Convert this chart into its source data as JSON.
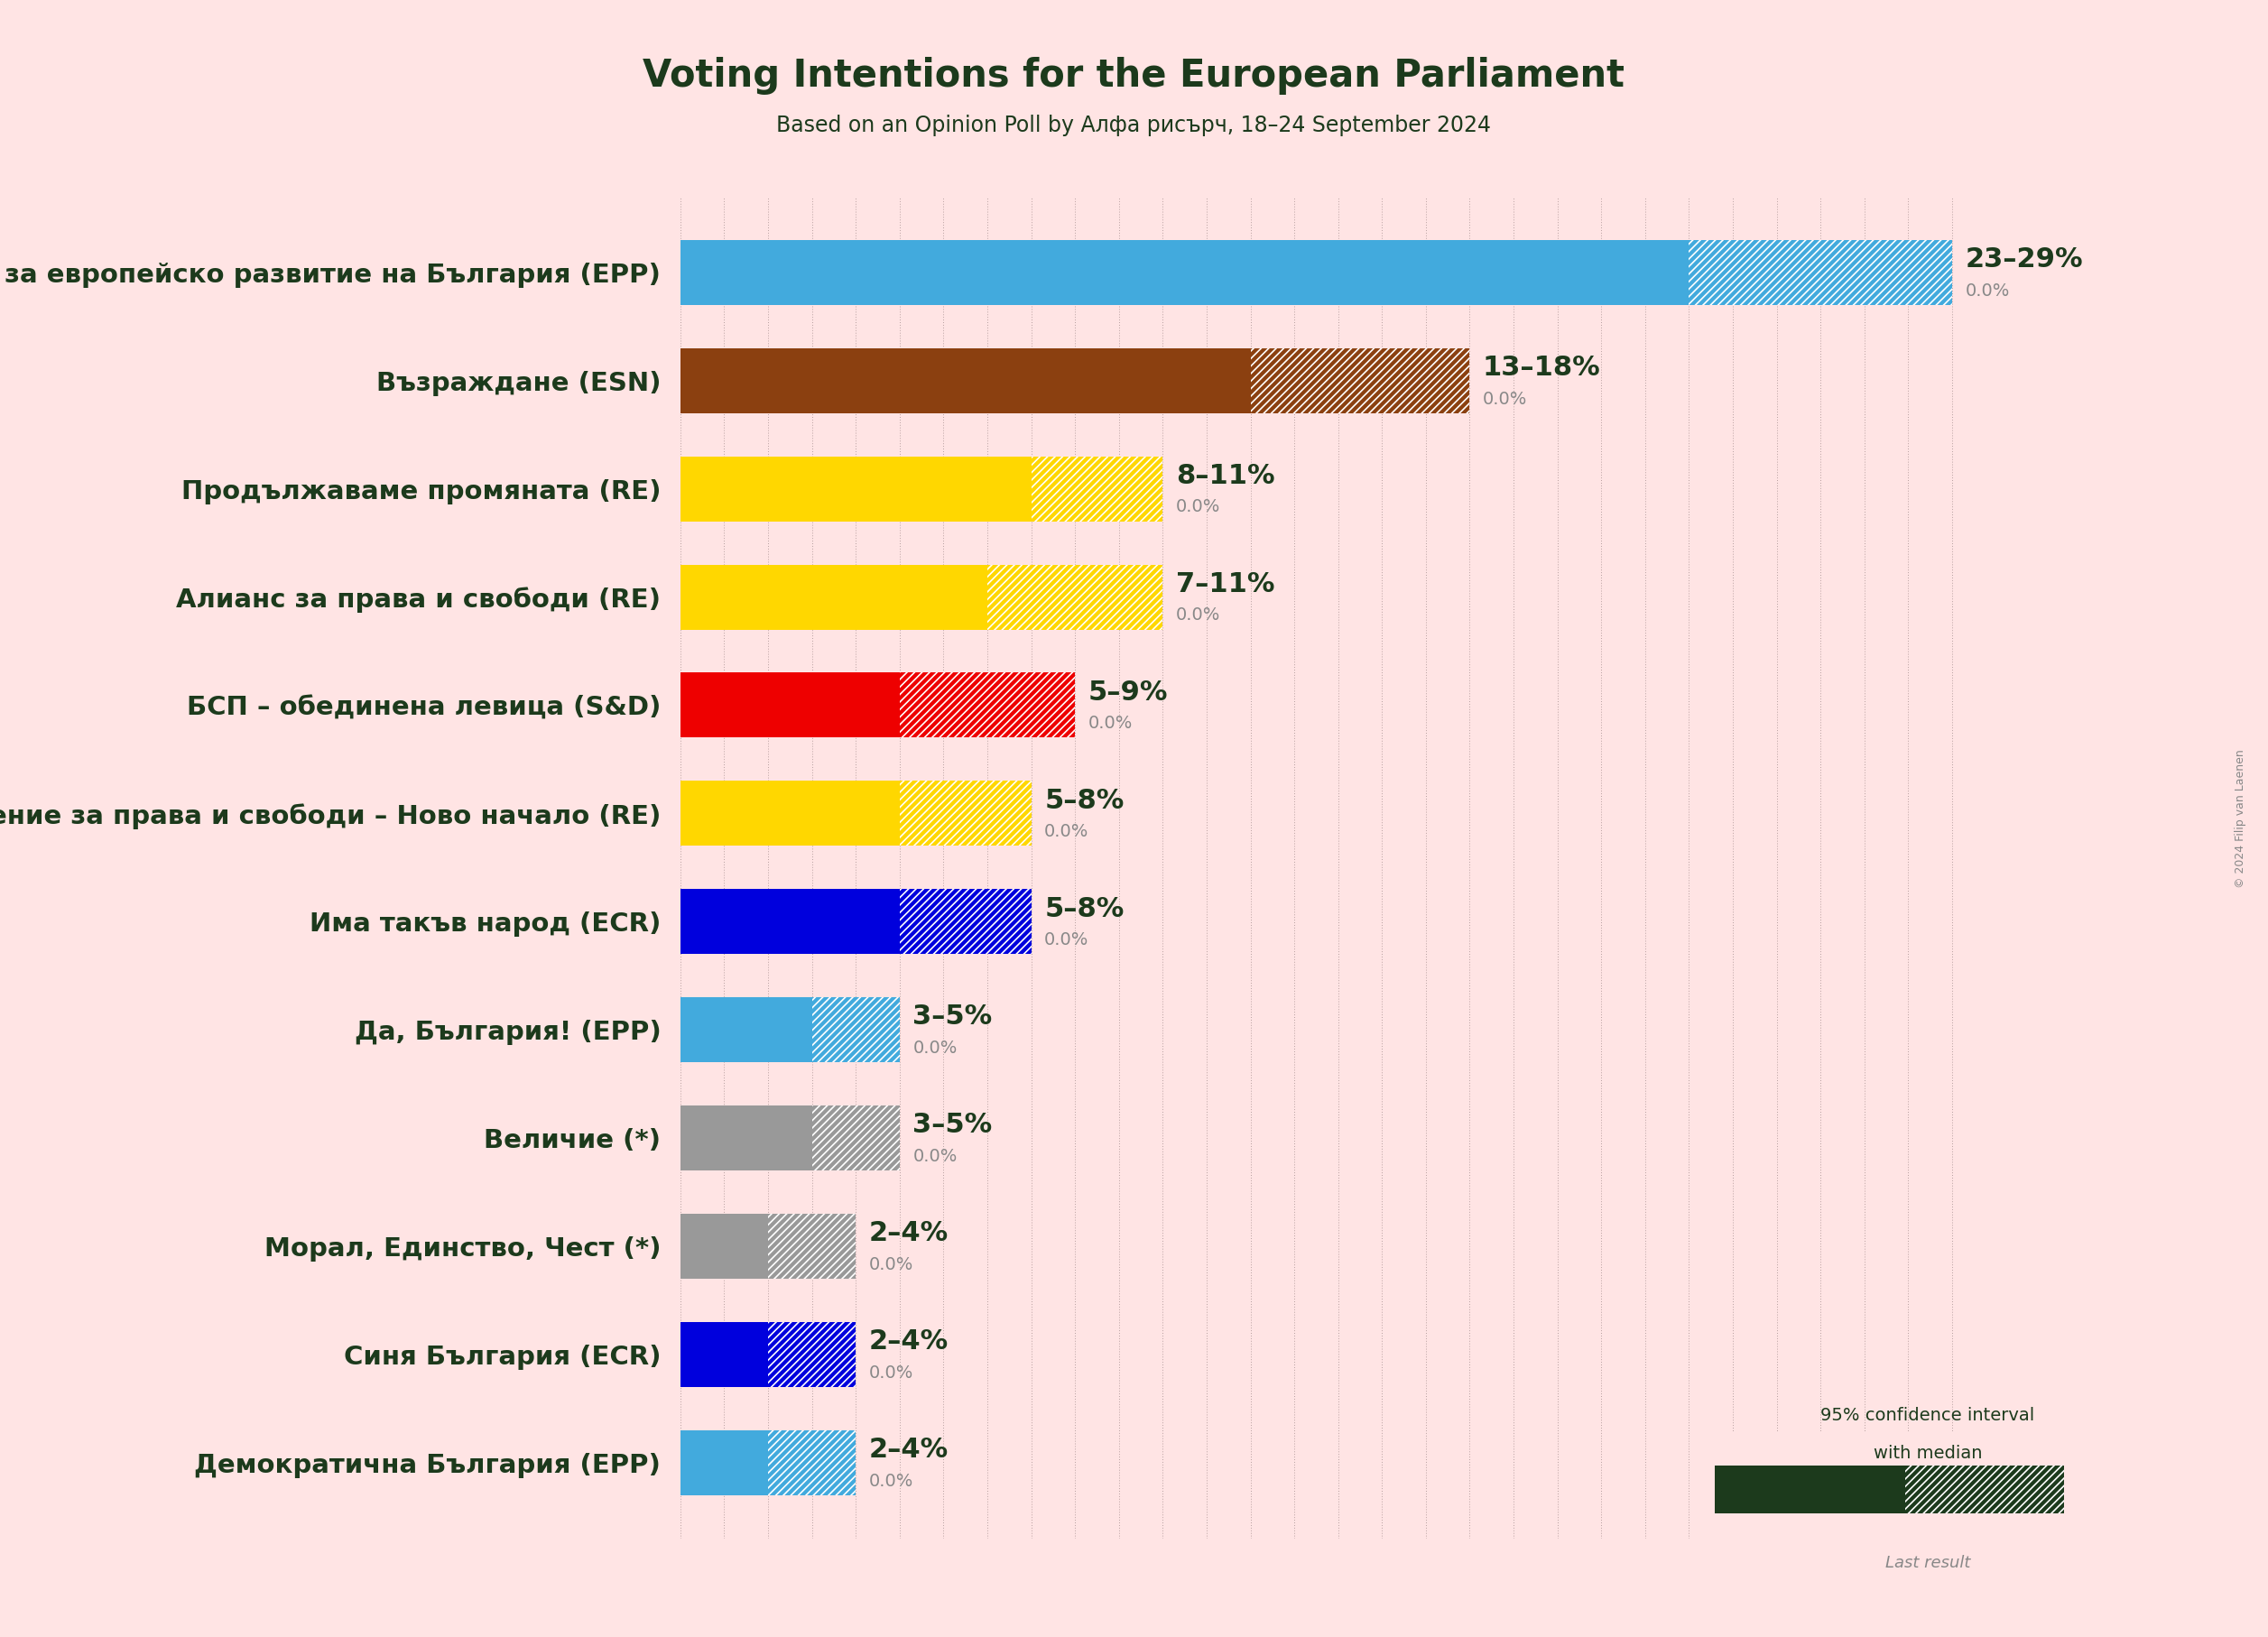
{
  "title": "Voting Intentions for the European Parliament",
  "subtitle": "Based on an Opinion Poll by Алфа рисърч, 18–24 September 2024",
  "background_color": "#FFE4E4",
  "parties": [
    {
      "name": "Граждани за европейско развитие на България (EPP)",
      "low": 23,
      "high": 29,
      "color": "#42AADD",
      "label": "23–29%",
      "last": "0.0%"
    },
    {
      "name": "Възраждане (ESN)",
      "low": 13,
      "high": 18,
      "color": "#8B4010",
      "label": "13–18%",
      "last": "0.0%"
    },
    {
      "name": "Продължаваме промяната (RE)",
      "low": 8,
      "high": 11,
      "color": "#FFD700",
      "label": "8–11%",
      "last": "0.0%"
    },
    {
      "name": "Алианс за права и свободи (RE)",
      "low": 7,
      "high": 11,
      "color": "#FFD700",
      "label": "7–11%",
      "last": "0.0%"
    },
    {
      "name": "БСП – обединена левица (S&D)",
      "low": 5,
      "high": 9,
      "color": "#EE0000",
      "label": "5–9%",
      "last": "0.0%"
    },
    {
      "name": "Движение за права и свободи – Ново начало (RE)",
      "low": 5,
      "high": 8,
      "color": "#FFD700",
      "label": "5–8%",
      "last": "0.0%"
    },
    {
      "name": "Има такъв народ (ECR)",
      "low": 5,
      "high": 8,
      "color": "#0000DD",
      "label": "5–8%",
      "last": "0.0%"
    },
    {
      "name": "Да, България! (EPP)",
      "low": 3,
      "high": 5,
      "color": "#42AADD",
      "label": "3–5%",
      "last": "0.0%"
    },
    {
      "name": "Величие (*)",
      "low": 3,
      "high": 5,
      "color": "#999999",
      "label": "3–5%",
      "last": "0.0%"
    },
    {
      "name": "Морал, Единство, Чест (*)",
      "low": 2,
      "high": 4,
      "color": "#999999",
      "label": "2–4%",
      "last": "0.0%"
    },
    {
      "name": "Синя България (ECR)",
      "low": 2,
      "high": 4,
      "color": "#0000DD",
      "label": "2–4%",
      "last": "0.0%"
    },
    {
      "name": "Демократична България (EPP)",
      "low": 2,
      "high": 4,
      "color": "#42AADD",
      "label": "2–4%",
      "last": "0.0%"
    }
  ],
  "xlim_data": 30,
  "bar_height": 0.6,
  "title_fontsize": 30,
  "subtitle_fontsize": 17,
  "label_fontsize": 22,
  "last_fontsize": 14,
  "party_fontsize": 21,
  "text_color": "#1C3A1C",
  "grid_color": "#B8A0A0",
  "copyright_text": "© 2024 Filip van Laenen"
}
